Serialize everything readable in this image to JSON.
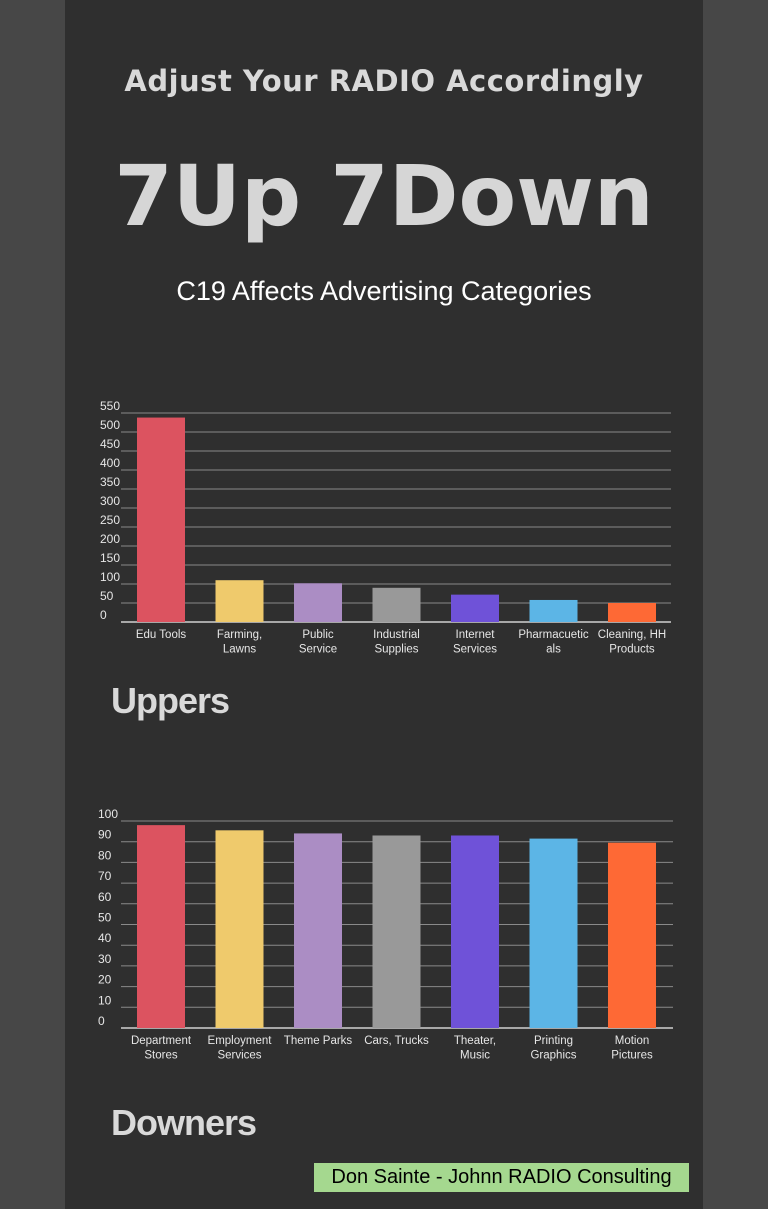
{
  "header": {
    "kicker": "Adjust Your RADIO Accordingly",
    "headline": "7Up 7Down",
    "subtitle": "C19 Affects Advertising Categories"
  },
  "sections": {
    "uppers": "Uppers",
    "downers": "Downers"
  },
  "credit": "Don Sainte - Johnn RADIO Consulting",
  "colors": {
    "background": "#474747",
    "panel": "#2f2f2f",
    "credit_bg": "#a5d88f",
    "series": [
      "#dc5360",
      "#efca6c",
      "#ab8dc4",
      "#999999",
      "#6f52d8",
      "#5cb5e6",
      "#fe6935"
    ]
  },
  "chart_data": [
    {
      "type": "bar",
      "categories": [
        [
          "Edu Tools"
        ],
        [
          "Farming,",
          "Lawns"
        ],
        [
          "Public",
          "Service"
        ],
        [
          "Industrial",
          "Supplies"
        ],
        [
          "Internet",
          "Services"
        ],
        [
          "Pharmacuetic",
          "als"
        ],
        [
          "Cleaning, HH",
          "Products"
        ]
      ],
      "values": [
        538,
        110,
        102,
        90,
        72,
        58,
        50
      ],
      "yticks": [
        0,
        50,
        100,
        150,
        200,
        250,
        300,
        350,
        400,
        450,
        500,
        550
      ],
      "ylim": [
        0,
        550
      ],
      "grid": true
    },
    {
      "type": "bar",
      "categories": [
        [
          "Department",
          "Stores"
        ],
        [
          "Employment",
          "Services"
        ],
        [
          "Theme Parks"
        ],
        [
          "Cars, Trucks"
        ],
        [
          "Theater,",
          "Music"
        ],
        [
          "Printing",
          "Graphics"
        ],
        [
          "Motion",
          "Pictures"
        ]
      ],
      "values": [
        98,
        95.5,
        94,
        93,
        93,
        91.5,
        89.5
      ],
      "yticks": [
        0,
        10,
        20,
        30,
        40,
        50,
        60,
        70,
        80,
        90,
        100
      ],
      "ylim": [
        0,
        100
      ],
      "grid": true
    }
  ]
}
